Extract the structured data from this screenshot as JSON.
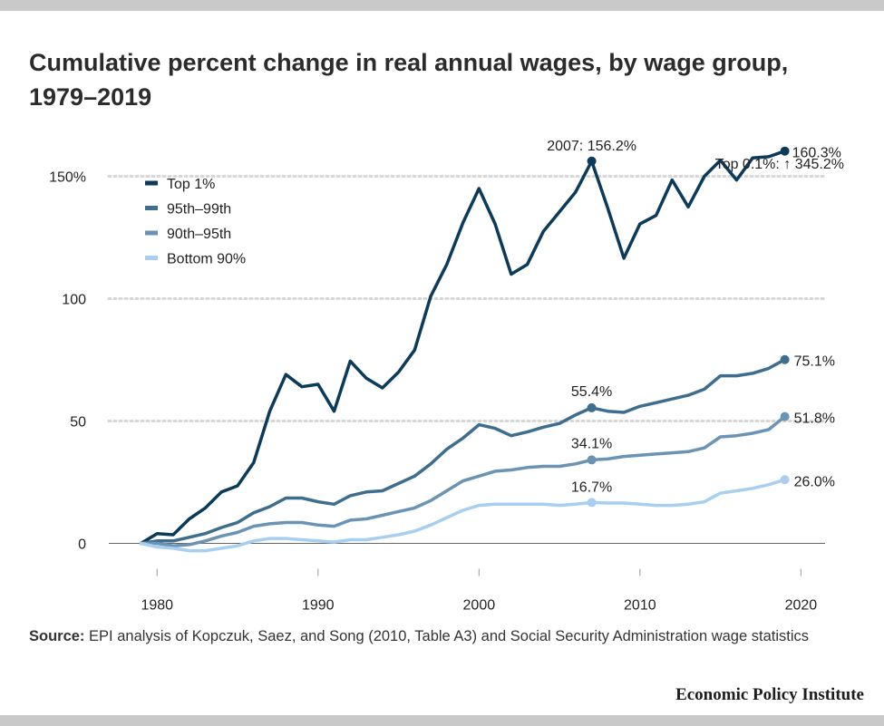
{
  "title": "Cumulative percent change in real annual wages, by wage group, 1979–2019",
  "source_label": "Source:",
  "source_text": "EPI analysis of Kopczuk, Saez, and Song (2010, Table A3) and Social Security Administration wage statistics",
  "publisher": "Economic Policy Institute",
  "chart_data": {
    "type": "line",
    "title": "Cumulative percent change in real annual wages, by wage group, 1979–2019",
    "xlabel": "",
    "ylabel": "",
    "xlim": [
      1977,
      2021.5
    ],
    "ylim": [
      -15,
      175
    ],
    "x_ticks": [
      1980,
      1990,
      2000,
      2010,
      2020
    ],
    "x_tick_labels": [
      "1980",
      "1990",
      "2000",
      "2010",
      "2020"
    ],
    "y_ticks": [
      0,
      50,
      100,
      150
    ],
    "y_tick_labels": [
      "0",
      "50",
      "100",
      "150%"
    ],
    "grid": "horizontal dotted",
    "legend_position": "top-left",
    "x": [
      1979,
      1980,
      1981,
      1982,
      1983,
      1984,
      1985,
      1986,
      1987,
      1988,
      1989,
      1990,
      1991,
      1992,
      1993,
      1994,
      1995,
      1996,
      1997,
      1998,
      1999,
      2000,
      2001,
      2002,
      2003,
      2004,
      2005,
      2006,
      2007,
      2008,
      2009,
      2010,
      2011,
      2012,
      2013,
      2014,
      2015,
      2016,
      2017,
      2018,
      2019
    ],
    "series": [
      {
        "name": "Top 1%",
        "color": "#0b3a5a",
        "values": [
          0,
          4,
          3.5,
          10,
          14.5,
          21,
          23.5,
          33,
          54,
          69,
          64,
          65,
          54,
          74.5,
          67.5,
          63.5,
          70,
          79,
          101,
          114,
          131,
          145,
          130.5,
          110,
          114,
          127.5,
          135.5,
          143.5,
          156.2,
          137,
          116.5,
          130.5,
          134,
          148.5,
          137.5,
          150,
          156.5,
          148.5,
          157.5,
          158,
          160.3
        ]
      },
      {
        "name": "95th–99th",
        "color": "#3d6d8f",
        "values": [
          0,
          1,
          1,
          2.5,
          4,
          6.5,
          8.5,
          12.5,
          15,
          18.5,
          18.5,
          17,
          16,
          19.5,
          21,
          21.5,
          24.5,
          27.5,
          32.5,
          38.5,
          43,
          48.5,
          47,
          44,
          45.5,
          47.5,
          49,
          52.5,
          55.4,
          54,
          53.5,
          56,
          57.5,
          59,
          60.5,
          63,
          68.5,
          68.5,
          69.5,
          71.5,
          75.1
        ]
      },
      {
        "name": "90th–95th",
        "color": "#6a93b4",
        "values": [
          0,
          0,
          -1,
          -0.5,
          1,
          3,
          4.5,
          7,
          8,
          8.5,
          8.5,
          7.5,
          7,
          9.5,
          10,
          11.5,
          13,
          14.5,
          17.5,
          21.5,
          25.5,
          27.5,
          29.5,
          30,
          31,
          31.5,
          31.5,
          32.5,
          34.1,
          34.5,
          35.5,
          36,
          36.5,
          37,
          37.5,
          39,
          43.5,
          44,
          45,
          46.5,
          51.8
        ]
      },
      {
        "name": "Bottom 90%",
        "color": "#a8cff0",
        "values": [
          0,
          -1.5,
          -2,
          -3,
          -3,
          -2,
          -1,
          1,
          2,
          2,
          1.5,
          1,
          0.5,
          1.5,
          1.5,
          2.5,
          3.5,
          5,
          7.5,
          10.5,
          13.5,
          15.5,
          16,
          16,
          16,
          16,
          15.5,
          16,
          16.7,
          16.5,
          16.5,
          16,
          15.5,
          15.5,
          16,
          17,
          20.5,
          21.5,
          22.5,
          24,
          26.0
        ]
      }
    ],
    "annotations": [
      {
        "series": 0,
        "x": 2007,
        "y": 156.2,
        "text": "2007: 156.2%",
        "marker": true
      },
      {
        "series": 0,
        "x": 2019,
        "y": 160.3,
        "text": "160.3%",
        "marker": true
      },
      {
        "series": 1,
        "x": 2007,
        "y": 55.4,
        "text": "55.4%",
        "marker": true
      },
      {
        "series": 1,
        "x": 2019,
        "y": 75.1,
        "text": "75.1%",
        "marker": true
      },
      {
        "series": 2,
        "x": 2007,
        "y": 34.1,
        "text": "34.1%",
        "marker": true
      },
      {
        "series": 2,
        "x": 2019,
        "y": 51.8,
        "text": "51.8%",
        "marker": true
      },
      {
        "series": 3,
        "x": 2007,
        "y": 16.7,
        "text": "16.7%",
        "marker": true
      },
      {
        "series": 3,
        "x": 2019,
        "y": 26.0,
        "text": "26.0%",
        "marker": true
      }
    ],
    "top_note": "Top 0.1%: ↑ 345.2%"
  }
}
